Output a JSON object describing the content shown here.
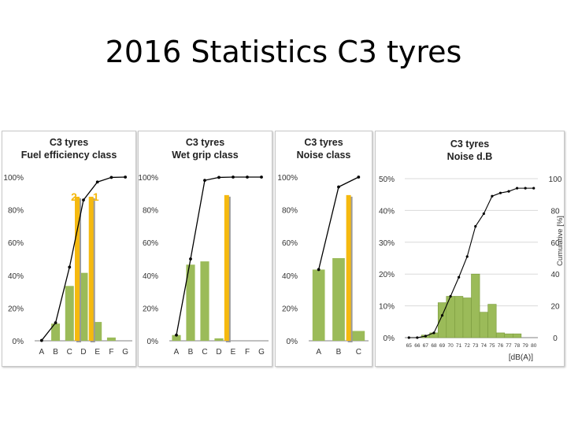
{
  "slide": {
    "title": "2016 Statistics C3 tyres"
  },
  "colors": {
    "bar": "#9bbb59",
    "bar_edge": "#7a9a3c",
    "highlight": "#f5b90f",
    "line": "#000000",
    "grid": "#d9d9d9",
    "axis": "#808080"
  },
  "chart_data": [
    {
      "type": "bar",
      "title_line1": "C3 tyres",
      "title_line2": "Fuel efficiency class",
      "categories": [
        "A",
        "B",
        "C",
        "D",
        "E",
        "F",
        "G"
      ],
      "values": [
        0,
        10.5,
        33.5,
        41.5,
        11.5,
        2,
        0
      ],
      "cumulative": [
        0.2,
        11,
        45,
        86,
        97,
        99.8,
        100
      ],
      "highlight": [
        {
          "category": "D",
          "value": 88,
          "label": "2"
        },
        {
          "category": "E",
          "value": 88,
          "label": "1"
        }
      ],
      "yticks": [
        "0%",
        "20%",
        "40%",
        "60%",
        "80%",
        "100%"
      ],
      "ylim": [
        0,
        100
      ],
      "grid": false
    },
    {
      "type": "bar",
      "title_line1": "C3 tyres",
      "title_line2": "Wet grip class",
      "categories": [
        "A",
        "B",
        "C",
        "D",
        "E",
        "F",
        "G"
      ],
      "values": [
        3.5,
        46.5,
        48.5,
        1.5,
        0,
        0,
        0
      ],
      "cumulative": [
        3.5,
        50,
        98,
        99.8,
        100,
        100,
        100
      ],
      "highlight": [
        {
          "category": "E",
          "value": 89,
          "label": ""
        }
      ],
      "yticks": [
        "0%",
        "20%",
        "40%",
        "60%",
        "80%",
        "100%"
      ],
      "ylim": [
        0,
        100
      ],
      "grid": false
    },
    {
      "type": "bar",
      "title_line1": "C3 tyres",
      "title_line2": "Noise class",
      "categories": [
        "A",
        "B",
        "C"
      ],
      "values": [
        43.5,
        50.5,
        6
      ],
      "cumulative": [
        43.5,
        94,
        100
      ],
      "highlight": [
        {
          "category": "C",
          "value": 89,
          "label": ""
        }
      ],
      "yticks": [
        "0%",
        "20%",
        "40%",
        "60%",
        "80%",
        "100%"
      ],
      "ylim": [
        0,
        100
      ],
      "grid": false
    },
    {
      "type": "bar",
      "title_line1": "C3 tyres",
      "title_line2": "Noise d.B",
      "categories": [
        "65",
        "66",
        "67",
        "68",
        "69",
        "70",
        "71",
        "72",
        "73",
        "74",
        "75",
        "76",
        "77",
        "78",
        "79",
        "80"
      ],
      "values": [
        0,
        0,
        0.8,
        1.5,
        11,
        13,
        13,
        12.5,
        20,
        8,
        10.5,
        1.5,
        1.2,
        1.2,
        0,
        0
      ],
      "cumulative": [
        0,
        0,
        1,
        3,
        14,
        26,
        38,
        51,
        70,
        78,
        89,
        91,
        92,
        94,
        94,
        94
      ],
      "yticks_left": [
        "0%",
        "10%",
        "20%",
        "30%",
        "40%",
        "50%"
      ],
      "yticks_right": [
        "0",
        "20",
        "40",
        "60",
        "80",
        "100"
      ],
      "ylim_left": [
        0,
        50
      ],
      "ylim_right": [
        0,
        100
      ],
      "ylabel_right": "Cumulative [%]",
      "xlabel": "[dB(A)]",
      "grid": true
    }
  ]
}
